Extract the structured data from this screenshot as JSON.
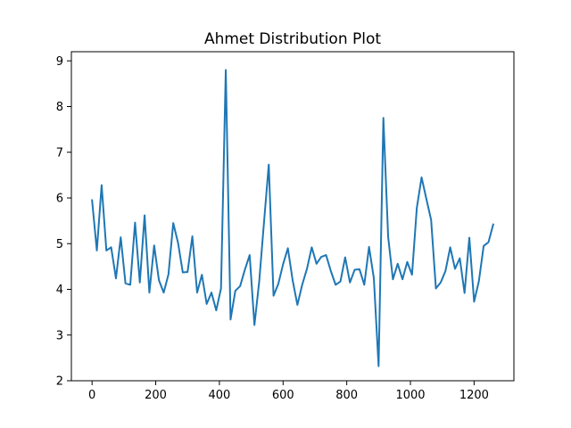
{
  "chart_data": {
    "type": "line",
    "title": "Ahmet Distribution Plot",
    "xlabel": "",
    "ylabel": "",
    "xlim": [
      -65,
      1325
    ],
    "ylim": [
      2,
      9.2
    ],
    "x_ticks": [
      0,
      200,
      400,
      600,
      800,
      1000,
      1200
    ],
    "y_ticks": [
      2,
      3,
      4,
      5,
      6,
      7,
      8,
      9
    ],
    "grid": false,
    "line_color": "#1f77b4",
    "series": [
      {
        "x": [
          0,
          15,
          30,
          45,
          60,
          75,
          90,
          105,
          120,
          135,
          150,
          165,
          180,
          195,
          210,
          225,
          240,
          255,
          270,
          285,
          300,
          315,
          330,
          345,
          360,
          375,
          390,
          405,
          420,
          435,
          450,
          465,
          480,
          495,
          510,
          525,
          540,
          555,
          570,
          585,
          600,
          615,
          630,
          645,
          660,
          675,
          690,
          705,
          720,
          735,
          750,
          765,
          780,
          795,
          810,
          825,
          840,
          855,
          870,
          885,
          900,
          915,
          930,
          945,
          960,
          975,
          990,
          1005,
          1020,
          1035,
          1050,
          1065,
          1080,
          1095,
          1110,
          1125,
          1140,
          1155,
          1170,
          1185,
          1200,
          1215,
          1230,
          1245,
          1260
        ],
        "y": [
          5.95,
          4.85,
          6.28,
          4.85,
          4.92,
          4.24,
          5.14,
          4.13,
          4.1,
          5.46,
          4.15,
          5.62,
          3.93,
          4.96,
          4.2,
          3.93,
          4.33,
          5.45,
          5.02,
          4.37,
          4.38,
          5.16,
          3.93,
          4.32,
          3.68,
          3.93,
          3.54,
          4.02,
          8.8,
          3.34,
          3.97,
          4.07,
          4.43,
          4.75,
          3.22,
          4.17,
          5.46,
          6.73,
          3.86,
          4.12,
          4.55,
          4.9,
          4.2,
          3.66,
          4.1,
          4.45,
          4.92,
          4.56,
          4.71,
          4.75,
          4.4,
          4.1,
          4.17,
          4.7,
          4.15,
          4.43,
          4.44,
          4.1,
          4.93,
          4.25,
          2.32,
          7.75,
          5.15,
          4.22,
          4.56,
          4.22,
          4.6,
          4.32,
          5.78,
          6.45,
          5.98,
          5.52,
          4.02,
          4.15,
          4.4,
          4.92,
          4.45,
          4.68,
          3.92,
          5.13,
          3.73,
          4.18,
          4.95,
          5.03,
          5.42
        ]
      }
    ]
  }
}
